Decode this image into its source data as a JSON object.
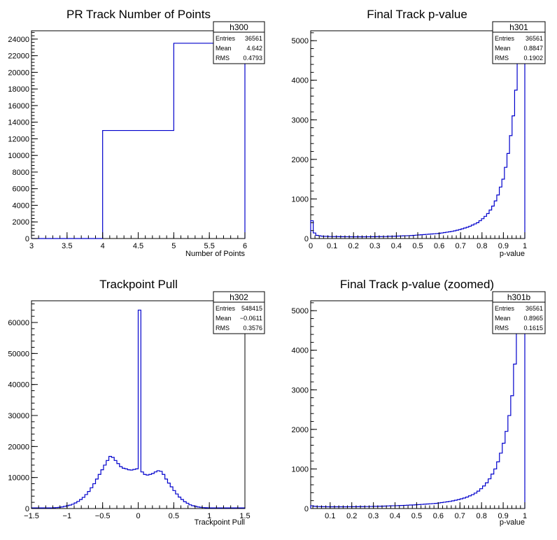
{
  "chart_data": [
    {
      "type": "histogram",
      "title": "PR Track Number of Points",
      "xlabel": "Number of Points",
      "ylabel": "",
      "xlim": [
        3,
        6
      ],
      "ylim": [
        0,
        25000
      ],
      "xticks": [
        "3",
        "3.5",
        "4",
        "4.5",
        "5",
        "5.5",
        "6"
      ],
      "yticks": [
        "0",
        "2000",
        "4000",
        "6000",
        "8000",
        "10000",
        "12000",
        "14000",
        "16000",
        "18000",
        "20000",
        "22000",
        "24000"
      ],
      "bins": [
        {
          "x0": 3,
          "x1": 4,
          "value": 0
        },
        {
          "x0": 4,
          "x1": 5,
          "value": 13000
        },
        {
          "x0": 5,
          "x1": 6,
          "value": 23500
        }
      ],
      "stats": {
        "name": "h300",
        "rows": [
          [
            "Entries",
            "36561"
          ],
          [
            "Mean",
            "4.642"
          ],
          [
            "RMS",
            "0.4793"
          ]
        ]
      },
      "line_color": "#0000cc"
    },
    {
      "type": "histogram",
      "title": "Final Track p-value",
      "xlabel": "p-value",
      "ylabel": "",
      "xlim": [
        0,
        1
      ],
      "ylim": [
        0,
        5250
      ],
      "xticks": [
        "0",
        "0.1",
        "0.2",
        "0.3",
        "0.4",
        "0.5",
        "0.6",
        "0.7",
        "0.8",
        "0.9",
        "1"
      ],
      "yticks": [
        "0",
        "1000",
        "2000",
        "3000",
        "4000",
        "5000"
      ],
      "bin_range": [
        0,
        1
      ],
      "values": [
        450,
        140,
        80,
        70,
        60,
        55,
        55,
        50,
        50,
        48,
        48,
        46,
        46,
        45,
        45,
        44,
        44,
        44,
        44,
        44,
        44,
        44,
        45,
        45,
        46,
        46,
        48,
        48,
        50,
        50,
        55,
        55,
        58,
        60,
        62,
        65,
        68,
        70,
        72,
        75,
        80,
        85,
        90,
        95,
        100,
        105,
        110,
        115,
        120,
        125,
        130,
        140,
        150,
        160,
        170,
        180,
        195,
        210,
        225,
        245,
        265,
        285,
        310,
        340,
        370,
        400,
        450,
        500,
        560,
        630,
        720,
        820,
        950,
        1100,
        1300,
        1500,
        1800,
        2150,
        2600,
        3100,
        3750,
        4500,
        5300,
        5300
      ],
      "stats": {
        "name": "h301",
        "rows": [
          [
            "Entries",
            "36561"
          ],
          [
            "Mean",
            "0.8847"
          ],
          [
            "RMS",
            "0.1902"
          ]
        ]
      },
      "line_color": "#0000cc"
    },
    {
      "type": "histogram",
      "title": "Trackpoint Pull",
      "xlabel": "Trackpoint Pull",
      "ylabel": "",
      "xlim": [
        -1.5,
        1.5
      ],
      "ylim": [
        0,
        67000
      ],
      "xticks": [
        "−1.5",
        "−1",
        "−0.5",
        "0",
        "0.5",
        "1",
        "1.5"
      ],
      "yticks": [
        "0",
        "10000",
        "20000",
        "30000",
        "40000",
        "50000",
        "60000"
      ],
      "bin_range": [
        -1.5,
        1.5
      ],
      "values": [
        200,
        200,
        200,
        200,
        200,
        200,
        200,
        200,
        250,
        300,
        400,
        500,
        700,
        900,
        1100,
        1400,
        1800,
        2300,
        2900,
        3600,
        4500,
        5500,
        6700,
        8000,
        9500,
        11000,
        12500,
        14000,
        15500,
        16800,
        16500,
        15500,
        14500,
        13500,
        13000,
        12800,
        12500,
        12400,
        12600,
        12800,
        64000,
        11800,
        11000,
        10800,
        11000,
        11300,
        11800,
        12200,
        12000,
        11000,
        9500,
        8200,
        7000,
        5800,
        4700,
        3700,
        2900,
        2200,
        1700,
        1200,
        900,
        700,
        500,
        400,
        300,
        250,
        200,
        200,
        200,
        200,
        200,
        200,
        200,
        200,
        200,
        200,
        200,
        200,
        200,
        200
      ],
      "stats": {
        "name": "h302",
        "rows": [
          [
            "Entries",
            "548415"
          ],
          [
            "Mean",
            "−0.0611"
          ],
          [
            "RMS",
            "0.3576"
          ]
        ]
      },
      "line_color": "#0000cc"
    },
    {
      "type": "histogram",
      "title": "Final Track p-value (zoomed)",
      "xlabel": "p-value",
      "ylabel": "",
      "xlim": [
        0.01,
        1
      ],
      "ylim": [
        0,
        5250
      ],
      "xticks": [
        "0.1",
        "0.2",
        "0.3",
        "0.4",
        "0.5",
        "0.6",
        "0.7",
        "0.8",
        "0.9",
        "1"
      ],
      "yticks": [
        "0",
        "1000",
        "2000",
        "3000",
        "4000",
        "5000"
      ],
      "bin_range": [
        0.01,
        1
      ],
      "values": [
        70,
        55,
        50,
        48,
        46,
        45,
        44,
        44,
        44,
        44,
        44,
        44,
        44,
        45,
        45,
        46,
        46,
        48,
        48,
        50,
        50,
        52,
        55,
        55,
        58,
        60,
        62,
        65,
        68,
        70,
        72,
        75,
        78,
        80,
        85,
        88,
        90,
        95,
        100,
        105,
        110,
        115,
        120,
        125,
        130,
        140,
        150,
        160,
        170,
        180,
        195,
        210,
        225,
        245,
        265,
        290,
        320,
        350,
        390,
        440,
        500,
        570,
        650,
        750,
        870,
        1000,
        1180,
        1400,
        1650,
        1950,
        2350,
        2850,
        3650,
        4500,
        5300,
        5300
      ],
      "stats": {
        "name": "h301b",
        "rows": [
          [
            "Entries",
            "36561"
          ],
          [
            "Mean",
            "0.8965"
          ],
          [
            "RMS",
            "0.1615"
          ]
        ]
      },
      "line_color": "#0000cc"
    }
  ]
}
